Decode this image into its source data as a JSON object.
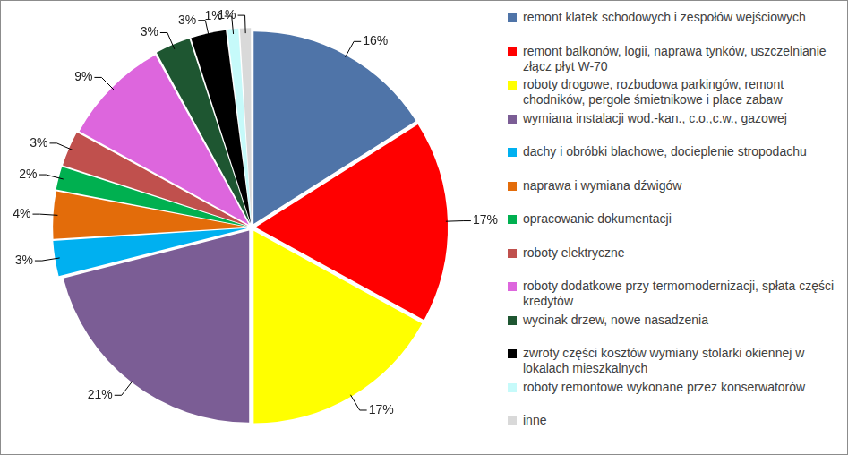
{
  "chart_data": {
    "type": "pie",
    "categories": [
      "remont klatek schodowych i zespołów wejściowych",
      "remont balkonów, logii, naprawa tynków, uszczelnianie złącz płyt W-70",
      "roboty drogowe, rozbudowa parkingów, remont chodników, pergole śmietnikowe i place zabaw",
      "wymiana instalacji wod.-kan., c.o.,c.w., gazowej",
      "dachy i obróbki blachowe, docieplenie stropodachu",
      "naprawa i wymiana dźwigów",
      "opracowanie dokumentacji",
      "roboty elektryczne",
      "roboty dodatkowe przy termomodernizacji, spłata części kredytów",
      "wycinak drzew, nowe nasadzenia",
      "zwroty części kosztów wymiany stolarki okiennej w lokalach mieszkalnych",
      "roboty remontowe wykonane przez konserwatorów",
      "inne"
    ],
    "values": [
      16,
      17,
      17,
      21,
      3,
      4,
      2,
      3,
      9,
      3,
      3,
      1,
      1
    ],
    "value_labels": [
      "16%",
      "17%",
      "17%",
      "21%",
      "3%",
      "4%",
      "2%",
      "3%",
      "9%",
      "3%",
      "3%",
      "1%",
      "1%"
    ],
    "colors": [
      "#4f74a8",
      "#ff0000",
      "#ffff00",
      "#7b5d95",
      "#00b0f0",
      "#e36c0a",
      "#00b050",
      "#c0504d",
      "#dd66dd",
      "#1e5631",
      "#000000",
      "#c6fafa",
      "#d9d9d9"
    ],
    "legend": "right",
    "data_labels": true
  }
}
